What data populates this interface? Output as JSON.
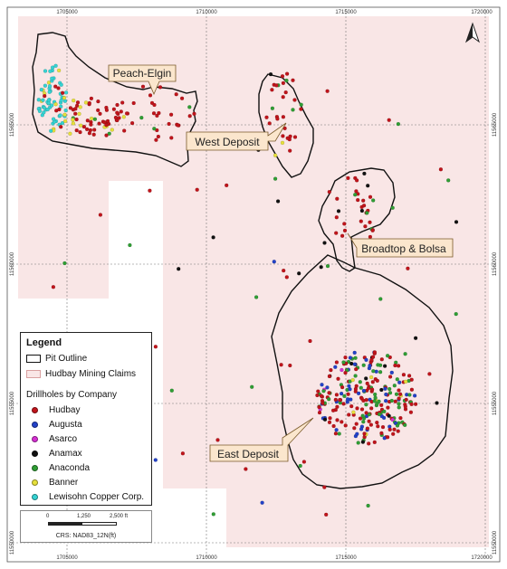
{
  "axis": {
    "x_ticks": [
      "1705000",
      "1710000",
      "1715000",
      "1720000"
    ],
    "y_ticks": [
      "11565000",
      "11560000",
      "11555000",
      "11550000"
    ]
  },
  "callouts": {
    "peach_elgin": "Peach-Elgin",
    "west_deposit": "West Deposit",
    "broadtop_bolsa": "Broadtop & Bolsa",
    "east_deposit": "East Deposit"
  },
  "legend": {
    "title": "Legend",
    "pit_outline": "Pit Outline",
    "claims": "Hudbay Mining Claims",
    "drillholes_heading": "Drillholes by Company",
    "companies": [
      {
        "name": "Hudbay",
        "color": "#c0141b"
      },
      {
        "name": "Augusta",
        "color": "#2342c8"
      },
      {
        "name": "Asarco",
        "color": "#d62fd3"
      },
      {
        "name": "Anamax",
        "color": "#111111"
      },
      {
        "name": "Anaconda",
        "color": "#2f9e34"
      },
      {
        "name": "Banner",
        "color": "#e6e03a"
      },
      {
        "name": "Lewisohn Copper Corp.",
        "color": "#35d3d3"
      }
    ]
  },
  "scale": {
    "labels": [
      "0",
      "1,250",
      "2,500 ft"
    ],
    "crs": "CRS: NAD83_12N(ft)"
  },
  "north_arrow": "north-arrow-icon"
}
